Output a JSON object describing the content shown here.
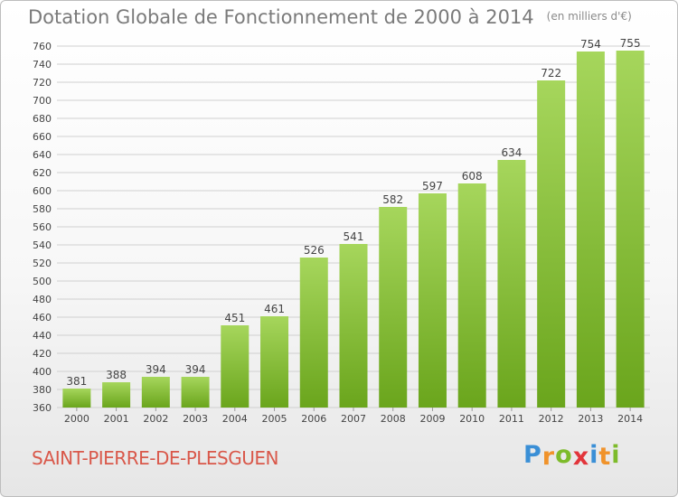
{
  "header": {
    "title": "Dotation Globale de Fonctionnement de 2000 à 2014",
    "unit": "(en milliers d'€)"
  },
  "footer": {
    "commune": "SAINT-PIERRE-DE-PLESGUEN",
    "brand": "Proxiti",
    "brand_letters": [
      {
        "ch": "P",
        "color": "#3a8fd6"
      },
      {
        "ch": "r",
        "color": "#f0932b"
      },
      {
        "ch": "o",
        "color": "#7dbb2a"
      },
      {
        "ch": "x",
        "color": "#e2353b"
      },
      {
        "ch": "i",
        "color": "#3a8fd6"
      },
      {
        "ch": "t",
        "color": "#f0932b"
      },
      {
        "ch": "i",
        "color": "#7dbb2a"
      }
    ]
  },
  "colors": {
    "bar_top": "#a6d65c",
    "bar_bottom": "#6aa51c",
    "grid": "#d0d0d0",
    "axis_text": "#444444"
  },
  "chart_data": {
    "type": "bar",
    "title": "Dotation Globale de Fonctionnement de 2000 à 2014",
    "categories": [
      "2000",
      "2001",
      "2002",
      "2003",
      "2004",
      "2005",
      "2006",
      "2007",
      "2008",
      "2009",
      "2010",
      "2011",
      "2012",
      "2013",
      "2014"
    ],
    "values": [
      381,
      388,
      394,
      394,
      451,
      461,
      526,
      541,
      582,
      597,
      608,
      634,
      722,
      754,
      755
    ],
    "ylim": [
      360,
      760
    ],
    "yticks": [
      360,
      380,
      400,
      420,
      440,
      460,
      480,
      500,
      520,
      540,
      560,
      580,
      600,
      620,
      640,
      660,
      680,
      700,
      720,
      740,
      760
    ],
    "grid": true,
    "data_labels": true
  }
}
